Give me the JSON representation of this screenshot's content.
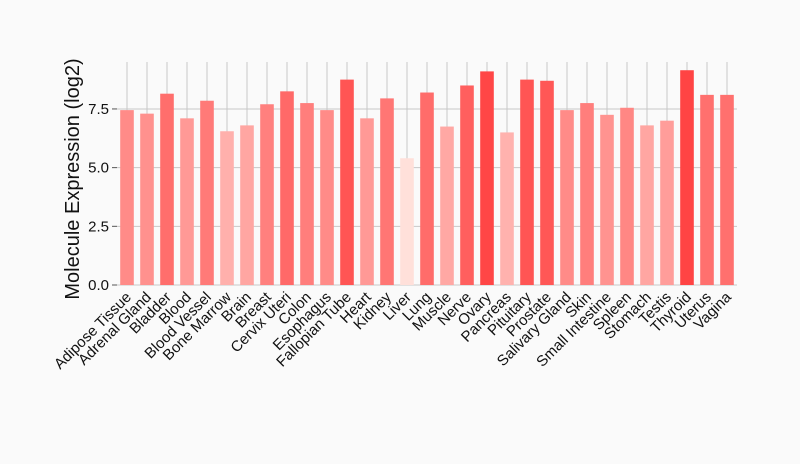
{
  "chart_data": {
    "type": "bar",
    "title": "",
    "xlabel": "",
    "ylabel": "Molecule Expression (log2)",
    "ylim": [
      0,
      9.5
    ],
    "yticks": [
      0.0,
      2.5,
      5.0,
      7.5
    ],
    "ytick_labels": [
      "0.0",
      "2.5",
      "5.0",
      "7.5"
    ],
    "grid": true,
    "categories": [
      "Adipose Tissue",
      "Adrenal Gland",
      "Bladder",
      "Blood",
      "Blood Vessel",
      "Bone Marrow",
      "Brain",
      "Breast",
      "Cervix Uteri",
      "Colon",
      "Esophagus",
      "Fallopian Tube",
      "Heart",
      "Kidney",
      "Liver",
      "Lung",
      "Muscle",
      "Nerve",
      "Ovary",
      "Pancreas",
      "Pituitary",
      "Prostate",
      "Salivary Gland",
      "Skin",
      "Small Intestine",
      "Spleen",
      "Stomach",
      "Testis",
      "Thyroid",
      "Uterus",
      "Vagina"
    ],
    "values": [
      7.45,
      7.3,
      8.15,
      7.1,
      7.85,
      6.55,
      6.8,
      7.7,
      8.25,
      7.75,
      7.45,
      8.75,
      7.1,
      7.95,
      5.4,
      8.2,
      6.75,
      8.5,
      9.1,
      6.5,
      8.75,
      8.7,
      7.45,
      7.75,
      7.25,
      7.55,
      6.8,
      7.0,
      9.15,
      8.1,
      8.1
    ],
    "colors": {
      "low": "#ffe0da",
      "high": "#ff4444"
    }
  }
}
